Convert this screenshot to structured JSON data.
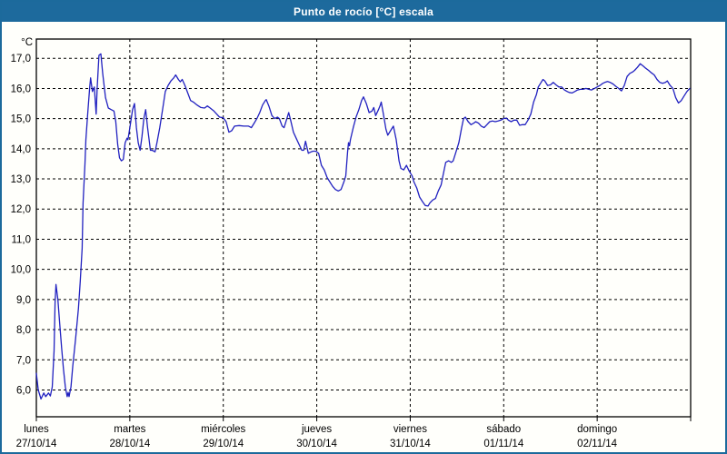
{
  "window": {
    "title": "Punto de rocío [°C] escala"
  },
  "colors": {
    "titlebar": "#1d6a9d",
    "window_border": "#1c6a9c",
    "plot_background": "#fffffb",
    "grid": "#000000",
    "plot_border": "#000000",
    "series_line": "#2121c0",
    "text": "#000000"
  },
  "chart_data": {
    "type": "line",
    "title": "Punto de rocío [°C] escala",
    "ylabel": "°C",
    "grid": "dashed",
    "legend": "none",
    "y_axis": {
      "unit_label": "°C",
      "tick_values": [
        17,
        16,
        15,
        14,
        13,
        12,
        11,
        10,
        9,
        8,
        7,
        6
      ],
      "tick_labels": [
        "17,0",
        "16,0",
        "15,0",
        "14,0",
        "13,0",
        "12,0",
        "11,0",
        "10,0",
        "9,0",
        "8,0",
        "7,0",
        "6,0"
      ],
      "range": [
        5.11,
        17.64
      ]
    },
    "x_axis": {
      "label_position": "day-start",
      "days": [
        {
          "name": "lunes",
          "date": "27/10/14"
        },
        {
          "name": "martes",
          "date": "28/10/14"
        },
        {
          "name": "miércoles",
          "date": "29/10/14"
        },
        {
          "name": "jueves",
          "date": "30/10/14"
        },
        {
          "name": "viernes",
          "date": "31/10/14"
        },
        {
          "name": "sábado",
          "date": "01/11/14"
        },
        {
          "name": "domingo",
          "date": "02/11/14"
        }
      ]
    },
    "series": [
      {
        "name": "Punto de rocío [°C]",
        "color": "#2121c0",
        "x_unit": "days_from_start",
        "points": [
          [
            0.0,
            6.55
          ],
          [
            0.02,
            6.0
          ],
          [
            0.05,
            5.7
          ],
          [
            0.08,
            5.9
          ],
          [
            0.1,
            5.78
          ],
          [
            0.13,
            5.9
          ],
          [
            0.15,
            5.8
          ],
          [
            0.17,
            6.1
          ],
          [
            0.19,
            7.3
          ],
          [
            0.2,
            8.9
          ],
          [
            0.21,
            9.5
          ],
          [
            0.23,
            9.0
          ],
          [
            0.25,
            8.2
          ],
          [
            0.27,
            7.4
          ],
          [
            0.29,
            6.7
          ],
          [
            0.31,
            6.1
          ],
          [
            0.33,
            5.78
          ],
          [
            0.34,
            5.92
          ],
          [
            0.35,
            5.78
          ],
          [
            0.37,
            6.1
          ],
          [
            0.39,
            6.8
          ],
          [
            0.42,
            7.7
          ],
          [
            0.45,
            8.7
          ],
          [
            0.47,
            9.6
          ],
          [
            0.49,
            10.7
          ],
          [
            0.5,
            12.2
          ],
          [
            0.52,
            13.5
          ],
          [
            0.53,
            14.3
          ],
          [
            0.55,
            15.2
          ],
          [
            0.57,
            16.0
          ],
          [
            0.58,
            16.35
          ],
          [
            0.6,
            15.9
          ],
          [
            0.62,
            16.05
          ],
          [
            0.64,
            15.15
          ],
          [
            0.65,
            16.0
          ],
          [
            0.67,
            17.1
          ],
          [
            0.69,
            17.15
          ],
          [
            0.71,
            16.5
          ],
          [
            0.74,
            15.7
          ],
          [
            0.77,
            15.35
          ],
          [
            0.8,
            15.3
          ],
          [
            0.83,
            15.25
          ],
          [
            0.85,
            14.9
          ],
          [
            0.87,
            14.15
          ],
          [
            0.89,
            13.7
          ],
          [
            0.91,
            13.6
          ],
          [
            0.93,
            13.65
          ],
          [
            0.95,
            14.2
          ],
          [
            0.97,
            14.35
          ],
          [
            0.98,
            14.3
          ],
          [
            1.0,
            14.7
          ],
          [
            1.03,
            15.3
          ],
          [
            1.05,
            15.5
          ],
          [
            1.07,
            14.7
          ],
          [
            1.09,
            14.2
          ],
          [
            1.11,
            13.95
          ],
          [
            1.13,
            14.4
          ],
          [
            1.15,
            15.0
          ],
          [
            1.17,
            15.3
          ],
          [
            1.19,
            14.7
          ],
          [
            1.21,
            14.2
          ],
          [
            1.22,
            13.95
          ],
          [
            1.24,
            13.95
          ],
          [
            1.27,
            13.9
          ],
          [
            1.29,
            14.2
          ],
          [
            1.32,
            14.7
          ],
          [
            1.35,
            15.3
          ],
          [
            1.38,
            15.9
          ],
          [
            1.41,
            16.1
          ],
          [
            1.44,
            16.25
          ],
          [
            1.47,
            16.35
          ],
          [
            1.49,
            16.45
          ],
          [
            1.52,
            16.3
          ],
          [
            1.54,
            16.22
          ],
          [
            1.56,
            16.3
          ],
          [
            1.59,
            16.1
          ],
          [
            1.62,
            15.85
          ],
          [
            1.65,
            15.6
          ],
          [
            1.68,
            15.55
          ],
          [
            1.72,
            15.45
          ],
          [
            1.76,
            15.37
          ],
          [
            1.8,
            15.35
          ],
          [
            1.83,
            15.42
          ],
          [
            1.86,
            15.35
          ],
          [
            1.9,
            15.25
          ],
          [
            1.93,
            15.15
          ],
          [
            1.96,
            15.05
          ],
          [
            2.0,
            15.03
          ],
          [
            2.03,
            14.9
          ],
          [
            2.06,
            14.55
          ],
          [
            2.09,
            14.6
          ],
          [
            2.12,
            14.75
          ],
          [
            2.17,
            14.77
          ],
          [
            2.22,
            14.75
          ],
          [
            2.27,
            14.75
          ],
          [
            2.3,
            14.7
          ],
          [
            2.33,
            14.85
          ],
          [
            2.36,
            15.0
          ],
          [
            2.39,
            15.2
          ],
          [
            2.42,
            15.45
          ],
          [
            2.45,
            15.6
          ],
          [
            2.46,
            15.63
          ],
          [
            2.49,
            15.4
          ],
          [
            2.52,
            15.1
          ],
          [
            2.55,
            15.0
          ],
          [
            2.58,
            15.05
          ],
          [
            2.6,
            15.0
          ],
          [
            2.63,
            14.75
          ],
          [
            2.65,
            14.7
          ],
          [
            2.68,
            15.0
          ],
          [
            2.7,
            15.2
          ],
          [
            2.72,
            14.95
          ],
          [
            2.75,
            14.55
          ],
          [
            2.78,
            14.35
          ],
          [
            2.81,
            14.15
          ],
          [
            2.84,
            13.95
          ],
          [
            2.86,
            13.95
          ],
          [
            2.88,
            14.25
          ],
          [
            2.91,
            13.85
          ],
          [
            2.94,
            13.9
          ],
          [
            2.96,
            13.92
          ],
          [
            2.99,
            13.92
          ],
          [
            3.02,
            13.85
          ],
          [
            3.05,
            13.45
          ],
          [
            3.08,
            13.3
          ],
          [
            3.11,
            13.05
          ],
          [
            3.14,
            12.9
          ],
          [
            3.17,
            12.75
          ],
          [
            3.2,
            12.65
          ],
          [
            3.23,
            12.6
          ],
          [
            3.26,
            12.65
          ],
          [
            3.29,
            12.9
          ],
          [
            3.31,
            13.1
          ],
          [
            3.33,
            13.9
          ],
          [
            3.34,
            14.2
          ],
          [
            3.35,
            14.1
          ],
          [
            3.36,
            14.3
          ],
          [
            3.39,
            14.7
          ],
          [
            3.42,
            15.05
          ],
          [
            3.45,
            15.3
          ],
          [
            3.48,
            15.6
          ],
          [
            3.5,
            15.72
          ],
          [
            3.53,
            15.5
          ],
          [
            3.56,
            15.2
          ],
          [
            3.59,
            15.25
          ],
          [
            3.61,
            15.37
          ],
          [
            3.63,
            15.1
          ],
          [
            3.66,
            15.3
          ],
          [
            3.68,
            15.45
          ],
          [
            3.69,
            15.55
          ],
          [
            3.71,
            15.2
          ],
          [
            3.74,
            14.65
          ],
          [
            3.76,
            14.45
          ],
          [
            3.79,
            14.6
          ],
          [
            3.82,
            14.75
          ],
          [
            3.85,
            14.3
          ],
          [
            3.88,
            13.6
          ],
          [
            3.9,
            13.35
          ],
          [
            3.93,
            13.3
          ],
          [
            3.96,
            13.45
          ],
          [
            3.99,
            13.25
          ],
          [
            4.02,
            13.1
          ],
          [
            4.04,
            12.9
          ],
          [
            4.07,
            12.7
          ],
          [
            4.1,
            12.4
          ],
          [
            4.13,
            12.25
          ],
          [
            4.16,
            12.12
          ],
          [
            4.19,
            12.1
          ],
          [
            4.21,
            12.2
          ],
          [
            4.24,
            12.3
          ],
          [
            4.27,
            12.35
          ],
          [
            4.3,
            12.6
          ],
          [
            4.33,
            12.8
          ],
          [
            4.35,
            13.1
          ],
          [
            4.38,
            13.55
          ],
          [
            4.41,
            13.6
          ],
          [
            4.44,
            13.55
          ],
          [
            4.46,
            13.6
          ],
          [
            4.49,
            13.9
          ],
          [
            4.52,
            14.2
          ],
          [
            4.55,
            14.7
          ],
          [
            4.57,
            15.0
          ],
          [
            4.59,
            15.05
          ],
          [
            4.62,
            14.9
          ],
          [
            4.65,
            14.8
          ],
          [
            4.68,
            14.85
          ],
          [
            4.7,
            14.9
          ],
          [
            4.73,
            14.85
          ],
          [
            4.76,
            14.75
          ],
          [
            4.79,
            14.7
          ],
          [
            4.82,
            14.8
          ],
          [
            4.85,
            14.9
          ],
          [
            4.88,
            14.92
          ],
          [
            4.91,
            14.9
          ],
          [
            4.94,
            14.92
          ],
          [
            4.97,
            14.95
          ],
          [
            5.0,
            15.0
          ],
          [
            5.03,
            15.02
          ],
          [
            5.05,
            14.95
          ],
          [
            5.08,
            14.9
          ],
          [
            5.11,
            14.95
          ],
          [
            5.14,
            14.95
          ],
          [
            5.17,
            14.78
          ],
          [
            5.2,
            14.8
          ],
          [
            5.23,
            14.8
          ],
          [
            5.26,
            14.95
          ],
          [
            5.29,
            15.15
          ],
          [
            5.32,
            15.55
          ],
          [
            5.35,
            15.8
          ],
          [
            5.37,
            16.05
          ],
          [
            5.4,
            16.2
          ],
          [
            5.42,
            16.3
          ],
          [
            5.44,
            16.25
          ],
          [
            5.47,
            16.1
          ],
          [
            5.5,
            16.12
          ],
          [
            5.53,
            16.2
          ],
          [
            5.56,
            16.12
          ],
          [
            5.59,
            16.05
          ],
          [
            5.62,
            16.05
          ],
          [
            5.65,
            15.95
          ],
          [
            5.68,
            15.9
          ],
          [
            5.7,
            15.87
          ],
          [
            5.73,
            15.85
          ],
          [
            5.76,
            15.9
          ],
          [
            5.79,
            15.95
          ],
          [
            5.82,
            15.97
          ],
          [
            5.85,
            15.97
          ],
          [
            5.88,
            16.0
          ],
          [
            5.91,
            15.97
          ],
          [
            5.94,
            15.95
          ],
          [
            5.97,
            16.0
          ],
          [
            6.0,
            16.05
          ],
          [
            6.03,
            16.1
          ],
          [
            6.06,
            16.17
          ],
          [
            6.08,
            16.2
          ],
          [
            6.11,
            16.23
          ],
          [
            6.14,
            16.2
          ],
          [
            6.17,
            16.15
          ],
          [
            6.2,
            16.07
          ],
          [
            6.23,
            16.0
          ],
          [
            6.26,
            15.92
          ],
          [
            6.29,
            16.1
          ],
          [
            6.32,
            16.4
          ],
          [
            6.35,
            16.5
          ],
          [
            6.38,
            16.55
          ],
          [
            6.4,
            16.6
          ],
          [
            6.43,
            16.7
          ],
          [
            6.46,
            16.82
          ],
          [
            6.49,
            16.75
          ],
          [
            6.52,
            16.67
          ],
          [
            6.55,
            16.6
          ],
          [
            6.58,
            16.52
          ],
          [
            6.61,
            16.45
          ],
          [
            6.64,
            16.3
          ],
          [
            6.67,
            16.2
          ],
          [
            6.7,
            16.17
          ],
          [
            6.73,
            16.2
          ],
          [
            6.75,
            16.25
          ],
          [
            6.78,
            16.1
          ],
          [
            6.81,
            16.0
          ],
          [
            6.84,
            15.7
          ],
          [
            6.87,
            15.52
          ],
          [
            6.9,
            15.6
          ],
          [
            6.93,
            15.75
          ],
          [
            6.96,
            15.9
          ],
          [
            6.99,
            16.0
          ]
        ]
      }
    ]
  }
}
